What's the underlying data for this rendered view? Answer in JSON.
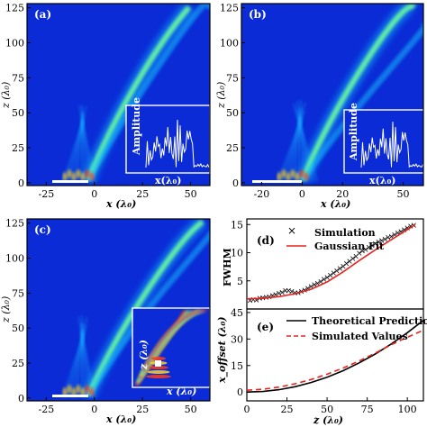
{
  "chart_data": [
    {
      "type": "heatmap",
      "panel_label": "(a)",
      "xlabel": "x (λ₀)",
      "ylabel": "z (λ₀)",
      "xlim": [
        -35,
        60
      ],
      "ylim": [
        -2,
        128
      ],
      "x_ticks": [
        "-25",
        "0",
        "25",
        "50"
      ],
      "y_ticks": [
        "0",
        "25",
        "50",
        "75",
        "100",
        "125"
      ],
      "inset": {
        "ylabel": "Amplitude",
        "xlabel": "x(λ₀)"
      }
    },
    {
      "type": "heatmap",
      "panel_label": "(b)",
      "xlabel": "x (λ₀)",
      "ylabel": "z (λ₀)",
      "xlim": [
        -30,
        60
      ],
      "ylim": [
        -2,
        128
      ],
      "x_ticks": [
        "-20",
        "0",
        "20",
        "50"
      ],
      "y_ticks": [
        "0",
        "25",
        "50",
        "75",
        "100",
        "125"
      ],
      "inset": {
        "ylabel": "Amplitude",
        "xlabel": "x(λ₀)"
      }
    },
    {
      "type": "heatmap",
      "panel_label": "(c)",
      "xlabel": "x (λ₀)",
      "ylabel": "z (λ₀)",
      "xlim": [
        -35,
        60
      ],
      "ylim": [
        -2,
        128
      ],
      "x_ticks": [
        "-25",
        "0",
        "25",
        "50"
      ],
      "y_ticks": [
        "0",
        "25",
        "50",
        "75",
        "100",
        "125"
      ],
      "inset": {
        "ylabel": "z (λ₀)",
        "xlabel": "x (λ₀)"
      }
    },
    {
      "type": "scatter",
      "panel_label": "(d)",
      "ylabel": "FWHM",
      "xlim": [
        0,
        110
      ],
      "ylim": [
        0,
        16
      ],
      "y_ticks": [
        5,
        10,
        15
      ],
      "series": [
        {
          "name": "Simulation",
          "marker": "×",
          "color": "#000000",
          "x": [
            2,
            4,
            6,
            8,
            10,
            12,
            14,
            16,
            18,
            20,
            22,
            24,
            26,
            28,
            30,
            32,
            34,
            36,
            38,
            40,
            42,
            44,
            46,
            48,
            50,
            52,
            54,
            56,
            58,
            60,
            62,
            64,
            66,
            68,
            70,
            72,
            74,
            76,
            78,
            80,
            82,
            84,
            86,
            88,
            90,
            92,
            94,
            96,
            98,
            100,
            102,
            104
          ],
          "y": [
            1.5,
            1.7,
            1.6,
            1.9,
            2.0,
            2.1,
            2.2,
            2.4,
            2.6,
            2.8,
            3.0,
            3.3,
            3.3,
            3.1,
            2.9,
            2.9,
            3.1,
            3.4,
            3.7,
            4.0,
            4.3,
            4.6,
            4.9,
            5.3,
            5.6,
            6.0,
            6.4,
            6.8,
            7.2,
            7.6,
            8.1,
            8.5,
            9.0,
            9.4,
            9.9,
            10.3,
            10.6,
            11.0,
            11.3,
            11.6,
            11.9,
            12.2,
            12.4,
            12.7,
            12.9,
            13.2,
            13.5,
            13.8,
            14.1,
            14.4,
            14.7,
            14.9
          ]
        },
        {
          "name": "Gaussian Fit",
          "color": "#e8231f",
          "x": [
            0,
            10,
            20,
            30,
            40,
            50,
            60,
            70,
            80,
            90,
            100,
            105
          ],
          "y": [
            1.8,
            1.9,
            2.2,
            2.7,
            3.5,
            4.8,
            6.6,
            8.6,
            10.5,
            12.3,
            14.1,
            15.0
          ]
        }
      ],
      "legend": "top-left"
    },
    {
      "type": "line",
      "panel_label": "(e)",
      "xlabel": "z (λ₀)",
      "ylabel": "x_offset (λ₀)",
      "xlim": [
        0,
        110
      ],
      "ylim": [
        -5,
        47
      ],
      "x_ticks": [
        0,
        25,
        50,
        75,
        100
      ],
      "y_ticks": [
        0,
        15,
        30,
        45
      ],
      "series": [
        {
          "name": "Theoretical Predictions",
          "color": "#000000",
          "dash": "solid",
          "x": [
            0,
            10,
            20,
            30,
            40,
            50,
            60,
            70,
            80,
            90,
            100,
            110
          ],
          "y": [
            0,
            0.3,
            1.3,
            3.0,
            5.4,
            8.4,
            12.1,
            16.5,
            21.5,
            27.2,
            33.6,
            40.6
          ]
        },
        {
          "name": "Simulated Values",
          "color": "#e8231f",
          "dash": "dashed",
          "x": [
            0,
            10,
            20,
            30,
            40,
            50,
            60,
            70,
            80,
            90,
            100,
            110
          ],
          "y": [
            1.0,
            1.6,
            2.8,
            4.7,
            7.1,
            10.1,
            13.6,
            17.6,
            22.0,
            26.8,
            31.0,
            35.0
          ]
        }
      ],
      "legend": "top-left"
    }
  ]
}
